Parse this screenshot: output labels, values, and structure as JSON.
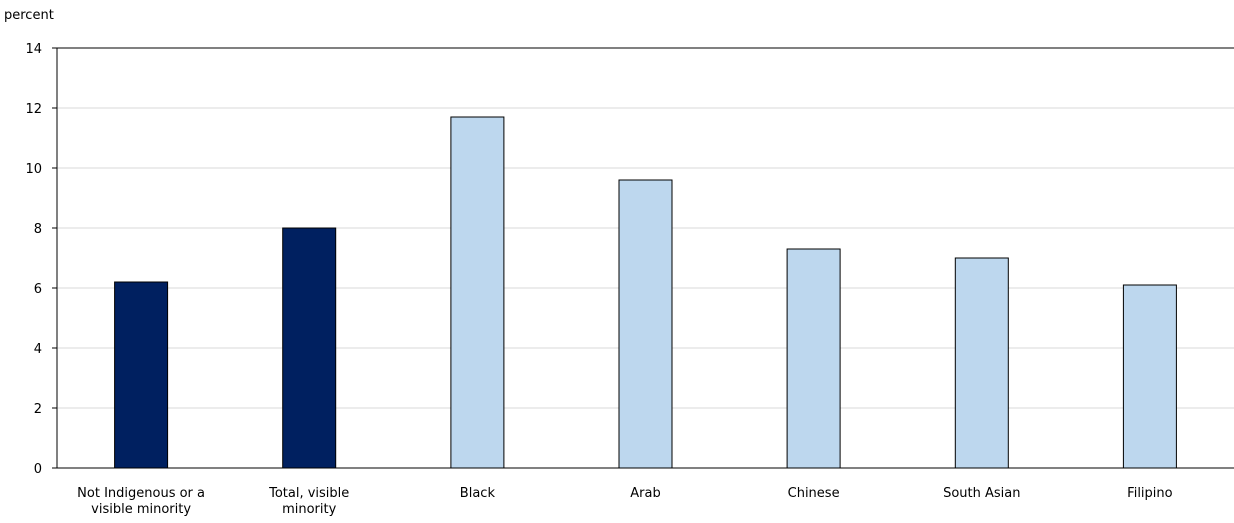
{
  "chart_data": {
    "type": "bar",
    "ylabel": "percent",
    "xlabel": "",
    "title": "",
    "ylim": [
      0,
      14
    ],
    "yticks": [
      0,
      2,
      4,
      6,
      8,
      10,
      12,
      14
    ],
    "grid": true,
    "categories": [
      [
        "Not Indigenous or a",
        "visible minority"
      ],
      [
        "Total, visible",
        "minority"
      ],
      [
        "Black"
      ],
      [
        "Arab"
      ],
      [
        "Chinese"
      ],
      [
        "South Asian"
      ],
      [
        "Filipino"
      ]
    ],
    "values": [
      6.2,
      8.0,
      11.7,
      9.6,
      7.3,
      7.0,
      6.1
    ],
    "bar_colors": [
      "#002060",
      "#002060",
      "#bdd7ee",
      "#bdd7ee",
      "#bdd7ee",
      "#bdd7ee",
      "#bdd7ee"
    ],
    "colors": {
      "bar_outline": "#000000",
      "grid": "#d9d9d9",
      "axis": "#000000",
      "dark_bar": "#002060",
      "light_bar": "#bdd7ee"
    }
  }
}
